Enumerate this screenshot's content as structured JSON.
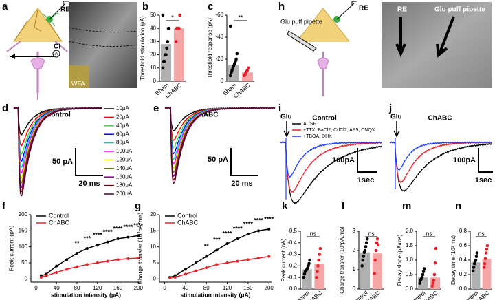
{
  "figure": {
    "a": {
      "electrode": "RE",
      "stim": "CI",
      "amp": "A",
      "stain": "WFA"
    },
    "h": {
      "pipette": "Glu puff pipette",
      "electrode": "RE",
      "image_electrode": "RE",
      "image_pipette": "Glu puff pipette"
    },
    "d": {
      "title": "Control",
      "scale_y": "50 pA",
      "scale_x": "20 ms",
      "legend": [
        "10μA",
        "20μA",
        "40μA",
        "60μA",
        "80μA",
        "100μA",
        "120μA",
        "140μA",
        "160μA",
        "180μA",
        "200μA"
      ],
      "legend_colors": [
        "#000000",
        "#ff0000",
        "#33dd33",
        "#0000ff",
        "#00cccc",
        "#ff00ff",
        "#dddd00",
        "#666600",
        "#800080",
        "#800000",
        "#4b0030"
      ]
    },
    "e": {
      "title": "ChABC",
      "scale_y": "50 pA",
      "scale_x": "20 ms"
    },
    "i": {
      "marker": "Glu",
      "title": "Control",
      "scale_y": "100pA",
      "scale_x": "1sec",
      "legend": [
        {
          "name": "ACSF",
          "color": "#000000"
        },
        {
          "name": "+TTX, BaCl2, CdCl2, AP5, CNQX",
          "color": "#e8202a"
        },
        {
          "name": "+TBOA, DHK",
          "color": "#1f3fff"
        }
      ]
    },
    "j": {
      "marker": "Glu",
      "title": "ChABC",
      "scale_y": "100pA",
      "scale_x": "1sec"
    }
  },
  "chart_data": [
    {
      "type": "bar",
      "ylabel": "Threshold stimulation (μA)",
      "categories": [
        "Sham",
        "ChABC"
      ],
      "values": [
        28,
        40
      ],
      "colors": [
        "#b0b0b0",
        "#f4a6a6"
      ],
      "point_colors": [
        "#000000",
        "#e8202a"
      ],
      "points": [
        [
          10,
          15,
          15,
          20,
          20,
          25,
          30,
          40,
          40,
          50
        ],
        [
          30,
          40,
          40,
          40,
          40,
          50
        ]
      ],
      "ylim": [
        0,
        50
      ],
      "yticks": [
        0,
        10,
        20,
        30,
        40,
        50
      ],
      "sig": "*"
    },
    {
      "type": "bar",
      "ylabel": "Threshold response (pA)",
      "categories": [
        "Sham",
        "ChABC"
      ],
      "values": [
        -15,
        -8
      ],
      "colors": [
        "#b0b0b0",
        "#f4a6a6"
      ],
      "point_colors": [
        "#000000",
        "#e8202a"
      ],
      "points": [
        [
          -5,
          -8,
          -10,
          -12,
          -14,
          -16,
          -18,
          -20,
          -25,
          -50
        ],
        [
          -5,
          -6,
          -8,
          -9,
          -10,
          -12
        ]
      ],
      "ylim": [
        0,
        -60
      ],
      "yticks": [
        0,
        -20,
        -40,
        -60
      ],
      "sig": "**"
    },
    {
      "type": "line",
      "ylabel": "Peak current (pA)",
      "xlabel": "stimulation intensity (μA)",
      "x": [
        10,
        20,
        40,
        60,
        80,
        100,
        120,
        140,
        160,
        180,
        200
      ],
      "series": [
        {
          "name": "Control",
          "color": "#000000",
          "values": [
            10,
            15,
            40,
            60,
            80,
            95,
            105,
            115,
            125,
            130,
            135
          ]
        },
        {
          "name": "ChABC",
          "color": "#e8202a",
          "values": [
            5,
            10,
            20,
            30,
            38,
            45,
            50,
            55,
            60,
            63,
            65
          ]
        }
      ],
      "xlim": [
        -10,
        205
      ],
      "xticks": [
        0,
        40,
        80,
        120,
        160,
        200
      ],
      "ylim": [
        -10,
        200
      ],
      "yticks": [
        0,
        50,
        100,
        150,
        200
      ],
      "annotations": [
        {
          "x": 80,
          "text": "**"
        },
        {
          "x": 100,
          "text": "***"
        },
        {
          "x": 120,
          "text": "****"
        },
        {
          "x": 140,
          "text": "****"
        },
        {
          "x": 160,
          "text": "****"
        },
        {
          "x": 180,
          "text": "****"
        },
        {
          "x": 200,
          "text": "****"
        }
      ]
    },
    {
      "type": "line",
      "ylabel": "Charge transfer (10³pA*ms)",
      "xlabel": "stimulation intensity (μA)",
      "x": [
        10,
        20,
        40,
        60,
        80,
        100,
        120,
        140,
        160,
        180,
        200
      ],
      "series": [
        {
          "name": "Control",
          "color": "#000000",
          "values": [
            0.5,
            1,
            3,
            5,
            7,
            9,
            11,
            12.5,
            14,
            15,
            15.5
          ]
        },
        {
          "name": "ChABC",
          "color": "#e8202a",
          "values": [
            0.3,
            0.5,
            1.5,
            2.5,
            3.5,
            4.5,
            5,
            5.5,
            6,
            6.5,
            7
          ]
        }
      ],
      "xlim": [
        -10,
        205
      ],
      "xticks": [
        0,
        40,
        80,
        120,
        160,
        200
      ],
      "ylim": [
        -1,
        20
      ],
      "yticks": [
        0,
        5,
        10,
        15,
        20
      ],
      "annotations": [
        {
          "x": 80,
          "text": "**"
        },
        {
          "x": 100,
          "text": "***"
        },
        {
          "x": 120,
          "text": "****"
        },
        {
          "x": 140,
          "text": "****"
        },
        {
          "x": 160,
          "text": "****"
        },
        {
          "x": 180,
          "text": "****"
        },
        {
          "x": 200,
          "text": "****"
        }
      ]
    },
    {
      "type": "bar",
      "ylabel": "Peak current (nA)",
      "categories": [
        "Control",
        "ChABC"
      ],
      "values": [
        -0.17,
        -0.22
      ],
      "colors": [
        "#b0b0b0",
        "#f4a6a6"
      ],
      "point_colors": [
        "#000000",
        "#e8202a"
      ],
      "points": [
        [
          -0.1,
          -0.13,
          -0.15,
          -0.16,
          -0.17,
          -0.18,
          -0.2,
          -0.22,
          -0.25
        ],
        [
          -0.1,
          -0.15,
          -0.2,
          -0.25,
          -0.3,
          -0.35
        ]
      ],
      "ylim": [
        0,
        -0.5
      ],
      "yticks": [
        {
          "value": 0,
          "label": "0.0"
        },
        -0.1,
        -0.2,
        -0.3,
        -0.4,
        -0.5
      ],
      "sig": "ns"
    },
    {
      "type": "bar",
      "ylabel": "Charge transfer (10³pA.ms)",
      "categories": [
        "Control",
        "ChABC"
      ],
      "values": [
        1.9,
        1.85
      ],
      "colors": [
        "#b0b0b0",
        "#f4a6a6"
      ],
      "point_colors": [
        "#000000",
        "#e8202a"
      ],
      "points": [
        [
          1.2,
          1.5,
          1.7,
          1.9,
          2.0,
          2.2,
          2.4,
          2.6
        ],
        [
          0.8,
          1.5,
          2.0,
          2.4,
          2.6,
          2.3
        ]
      ],
      "ylim": [
        0,
        3
      ],
      "yticks": [
        0,
        1,
        2,
        3
      ],
      "sig": "ns"
    },
    {
      "type": "bar",
      "ylabel": "Decay slope (pA/ms)",
      "categories": [
        "Control",
        "ChABC"
      ],
      "values": [
        0.4,
        0.4
      ],
      "colors": [
        "#b0b0b0",
        "#f4a6a6"
      ],
      "point_colors": [
        "#000000",
        "#e8202a"
      ],
      "points": [
        [
          0.2,
          0.3,
          0.35,
          0.4,
          0.5,
          0.6,
          0.7
        ],
        [
          0.1,
          0.2,
          0.3,
          0.5,
          0.9,
          1.4
        ]
      ],
      "ylim": [
        0,
        2
      ],
      "yticks": [
        {
          "value": 0,
          "label": "0.0"
        },
        0.5,
        {
          "value": 1,
          "label": "1.0"
        },
        1.5,
        {
          "value": 2,
          "label": "2.0"
        }
      ],
      "sig": "ns"
    },
    {
      "type": "bar",
      "ylabel": "Decay time (10³ ms)",
      "categories": [
        "Control",
        "ChABC"
      ],
      "values": [
        0.37,
        0.42
      ],
      "colors": [
        "#b0b0b0",
        "#f4a6a6"
      ],
      "point_colors": [
        "#000000",
        "#e8202a"
      ],
      "points": [
        [
          0.25,
          0.3,
          0.35,
          0.38,
          0.4,
          0.45,
          0.5
        ],
        [
          0.3,
          0.35,
          0.42,
          0.5,
          0.55,
          0.6
        ]
      ],
      "ylim": [
        0,
        0.8
      ],
      "yticks": [
        {
          "value": 0,
          "label": "0.0"
        },
        0.2,
        0.4,
        0.6,
        0.8
      ],
      "sig": "ns"
    }
  ]
}
